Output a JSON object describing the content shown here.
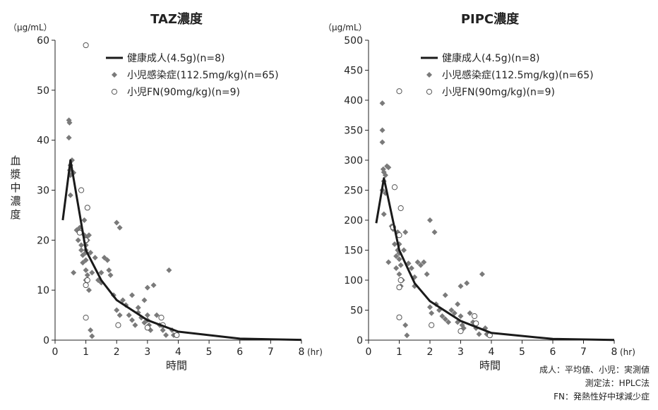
{
  "chart_data": [
    {
      "type": "line",
      "title": "TAZ濃度",
      "unit_label": "（μg/mL）",
      "ylabel": "血漿中濃度",
      "xlabel": "時間",
      "x_unit": "(hr)",
      "xlim": [
        0,
        8
      ],
      "ylim": [
        0,
        60
      ],
      "x_ticks": [
        "0",
        "1",
        "2",
        "3",
        "4",
        "5",
        "6",
        "7",
        "8"
      ],
      "y_ticks": [
        "0",
        "10",
        "20",
        "30",
        "40",
        "50",
        "60"
      ],
      "legend_position": "top-right",
      "grid": false,
      "series": [
        {
          "name": "健康成人(4.5g)(n=8)",
          "kind": "line",
          "color": "#1a1a1a",
          "points": [
            [
              0.25,
              24
            ],
            [
              0.5,
              36
            ],
            [
              1,
              18
            ],
            [
              1.5,
              12
            ],
            [
              2,
              8
            ],
            [
              3,
              4
            ],
            [
              4,
              1.7
            ],
            [
              6,
              0.3
            ],
            [
              8,
              0.05
            ]
          ]
        },
        {
          "name": "小児感染症(112.5mg/kg)(n=65)",
          "kind": "scatter",
          "marker": "diamond",
          "color": "#7a7a7a",
          "points": [
            [
              0.45,
              44
            ],
            [
              0.47,
              43.5
            ],
            [
              0.45,
              40.5
            ],
            [
              0.5,
              35
            ],
            [
              0.48,
              34
            ],
            [
              0.55,
              36
            ],
            [
              0.5,
              33
            ],
            [
              0.6,
              33.5
            ],
            [
              0.5,
              29
            ],
            [
              0.6,
              13.5
            ],
            [
              0.7,
              22
            ],
            [
              0.75,
              20
            ],
            [
              0.8,
              22.5
            ],
            [
              0.85,
              18
            ],
            [
              0.85,
              19
            ],
            [
              0.9,
              17
            ],
            [
              0.9,
              15.5
            ],
            [
              0.95,
              21
            ],
            [
              0.95,
              24
            ],
            [
              1.0,
              19
            ],
            [
              1.0,
              18
            ],
            [
              1.0,
              17.5
            ],
            [
              1.0,
              20.5
            ],
            [
              1.0,
              16
            ],
            [
              1.05,
              20
            ],
            [
              1.0,
              14
            ],
            [
              1.05,
              13
            ],
            [
              1.0,
              12
            ],
            [
              1.1,
              10
            ],
            [
              1.1,
              21
            ],
            [
              1.15,
              17.5
            ],
            [
              1.2,
              13.5
            ],
            [
              1.15,
              2
            ],
            [
              1.2,
              0.8
            ],
            [
              1.3,
              16.5
            ],
            [
              1.4,
              12
            ],
            [
              1.5,
              13.5
            ],
            [
              1.5,
              11.5
            ],
            [
              1.6,
              16.5
            ],
            [
              1.7,
              16
            ],
            [
              1.75,
              14
            ],
            [
              1.8,
              13
            ],
            [
              1.9,
              9
            ],
            [
              2.0,
              23.5
            ],
            [
              2.1,
              22.5
            ],
            [
              2.0,
              6
            ],
            [
              2.1,
              5
            ],
            [
              2.2,
              8
            ],
            [
              2.3,
              7
            ],
            [
              2.4,
              5
            ],
            [
              2.5,
              9
            ],
            [
              2.5,
              4
            ],
            [
              2.6,
              3
            ],
            [
              2.7,
              6.5
            ],
            [
              2.7,
              5.5
            ],
            [
              2.8,
              4.5
            ],
            [
              2.9,
              8
            ],
            [
              2.9,
              3.5
            ],
            [
              3.0,
              10.5
            ],
            [
              3.0,
              5
            ],
            [
              3.0,
              4
            ],
            [
              3.05,
              3
            ],
            [
              3.1,
              2
            ],
            [
              3.2,
              11
            ],
            [
              3.3,
              5
            ],
            [
              3.4,
              3
            ],
            [
              3.5,
              2
            ],
            [
              3.6,
              1
            ],
            [
              3.7,
              14
            ],
            [
              3.8,
              2
            ],
            [
              3.85,
              1
            ]
          ]
        },
        {
          "name": "小児FN(90mg/kg)(n=9)",
          "kind": "scatter",
          "marker": "open-circle",
          "color": "#555555",
          "points": [
            [
              1.0,
              59
            ],
            [
              0.85,
              30
            ],
            [
              0.8,
              21.5
            ],
            [
              1.05,
              26.5
            ],
            [
              1.0,
              20
            ],
            [
              1.05,
              12
            ],
            [
              1.0,
              11
            ],
            [
              1.0,
              4.5
            ],
            [
              2.05,
              3
            ],
            [
              3.0,
              2.5
            ],
            [
              3.45,
              4.5
            ],
            [
              3.5,
              3
            ],
            [
              3.95,
              1
            ]
          ]
        }
      ]
    },
    {
      "type": "line",
      "title": "PIPC濃度",
      "unit_label": "（μg/mL）",
      "xlabel": "時間",
      "x_unit": "(hr)",
      "xlim": [
        0,
        8
      ],
      "ylim": [
        0,
        500
      ],
      "x_ticks": [
        "0",
        "1",
        "2",
        "3",
        "4",
        "5",
        "6",
        "7",
        "8"
      ],
      "y_ticks": [
        "0",
        "50",
        "100",
        "150",
        "200",
        "250",
        "300",
        "350",
        "400",
        "450",
        "500"
      ],
      "legend_position": "top-right",
      "grid": false,
      "series": [
        {
          "name": "健康成人(4.5g)(n=8)",
          "kind": "line",
          "color": "#1a1a1a",
          "points": [
            [
              0.25,
              195
            ],
            [
              0.5,
              270
            ],
            [
              1,
              150
            ],
            [
              1.5,
              95
            ],
            [
              2,
              65
            ],
            [
              3,
              32
            ],
            [
              4,
              12
            ],
            [
              6,
              2
            ],
            [
              8,
              0.3
            ]
          ]
        },
        {
          "name": "小児感染症(112.5mg/kg)(n=65)",
          "kind": "scatter",
          "marker": "diamond",
          "color": "#7a7a7a",
          "points": [
            [
              0.45,
              395
            ],
            [
              0.45,
              350
            ],
            [
              0.45,
              330
            ],
            [
              0.48,
              285
            ],
            [
              0.5,
              280
            ],
            [
              0.55,
              275
            ],
            [
              0.6,
              290
            ],
            [
              0.65,
              288
            ],
            [
              0.5,
              265
            ],
            [
              0.45,
              250
            ],
            [
              0.55,
              245
            ],
            [
              0.5,
              210
            ],
            [
              0.65,
              130
            ],
            [
              0.75,
              190
            ],
            [
              0.8,
              185
            ],
            [
              0.85,
              160
            ],
            [
              0.9,
              140
            ],
            [
              0.9,
              120
            ],
            [
              0.95,
              150
            ],
            [
              0.95,
              180
            ],
            [
              1.0,
              145
            ],
            [
              1.0,
              135
            ],
            [
              1.0,
              160
            ],
            [
              1.05,
              125
            ],
            [
              1.0,
              110
            ],
            [
              1.05,
              90
            ],
            [
              1.1,
              100
            ],
            [
              1.15,
              150
            ],
            [
              1.2,
              180
            ],
            [
              1.2,
              25
            ],
            [
              1.25,
              8
            ],
            [
              1.3,
              128
            ],
            [
              1.4,
              120
            ],
            [
              1.5,
              105
            ],
            [
              1.5,
              90
            ],
            [
              1.6,
              130
            ],
            [
              1.7,
              125
            ],
            [
              1.8,
              130
            ],
            [
              1.9,
              110
            ],
            [
              2.0,
              200
            ],
            [
              2.15,
              180
            ],
            [
              2.0,
              55
            ],
            [
              2.05,
              45
            ],
            [
              2.2,
              60
            ],
            [
              2.3,
              50
            ],
            [
              2.4,
              40
            ],
            [
              2.5,
              75
            ],
            [
              2.5,
              35
            ],
            [
              2.6,
              30
            ],
            [
              2.7,
              50
            ],
            [
              2.8,
              45
            ],
            [
              2.9,
              60
            ],
            [
              2.9,
              30
            ],
            [
              3.0,
              90
            ],
            [
              3.0,
              40
            ],
            [
              3.05,
              25
            ],
            [
              3.1,
              20
            ],
            [
              3.2,
              95
            ],
            [
              3.3,
              45
            ],
            [
              3.4,
              30
            ],
            [
              3.5,
              20
            ],
            [
              3.6,
              10
            ],
            [
              3.7,
              110
            ],
            [
              3.8,
              20
            ],
            [
              3.85,
              10
            ]
          ]
        },
        {
          "name": "小児FN(90mg/kg)(n=9)",
          "kind": "scatter",
          "marker": "open-circle",
          "color": "#555555",
          "points": [
            [
              1.0,
              415
            ],
            [
              0.85,
              255
            ],
            [
              0.8,
              188
            ],
            [
              1.05,
              220
            ],
            [
              1.0,
              175
            ],
            [
              1.05,
              100
            ],
            [
              1.0,
              88
            ],
            [
              1.0,
              38
            ],
            [
              2.05,
              25
            ],
            [
              3.0,
              15
            ],
            [
              3.45,
              40
            ],
            [
              3.5,
              28
            ],
            [
              3.95,
              8
            ]
          ]
        }
      ]
    }
  ],
  "footnotes": [
    "成人：平均値、小児：実測値",
    "測定法：HPLC法",
    "FN：発熱性好中球減少症"
  ]
}
